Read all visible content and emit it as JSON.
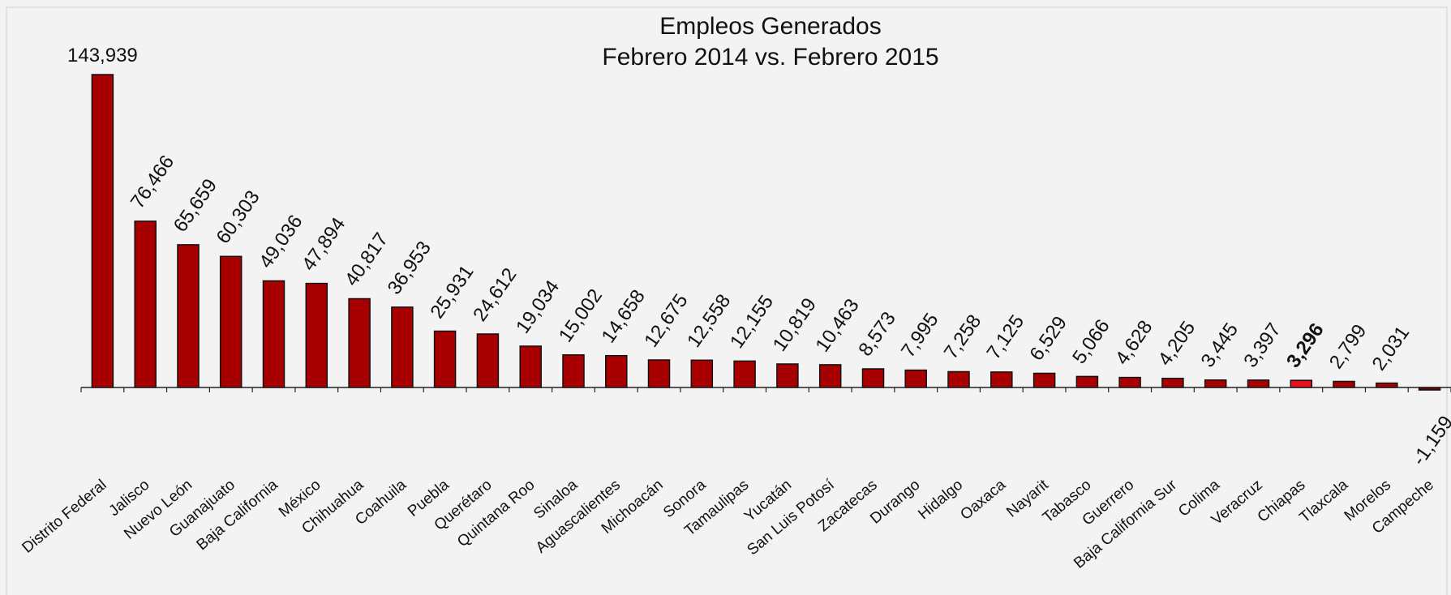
{
  "chart_data": {
    "type": "bar",
    "title": "Empleos Generados",
    "subtitle": "Febrero 2014 vs. Febrero 2015",
    "xlabel": "",
    "ylabel": "",
    "grid": false,
    "legend": "none",
    "categories": [
      "Distrito Federal",
      "Jalisco",
      "Nuevo León",
      "Guanajuato",
      "Baja California",
      "México",
      "Chihuahua",
      "Coahuila",
      "Puebla",
      "Querétaro",
      "Quintana Roo",
      "Sinaloa",
      "Aguascalientes",
      "Michoacán",
      "Sonora",
      "Tamaulipas",
      "Yucatán",
      "San Luis Potosí",
      "Zacatecas",
      "Durango",
      "Hidalgo",
      "Oaxaca",
      "Nayarit",
      "Tabasco",
      "Guerrero",
      "Baja California Sur",
      "Colima",
      "Veracruz",
      "Chiapas",
      "Tlaxcala",
      "Morelos",
      "Campeche"
    ],
    "values": [
      143939,
      76466,
      65659,
      60303,
      49036,
      47894,
      40817,
      36953,
      25931,
      24612,
      19034,
      15002,
      14658,
      12675,
      12558,
      12155,
      10819,
      10463,
      8573,
      7995,
      7258,
      7125,
      6529,
      5066,
      4628,
      4205,
      3445,
      3397,
      3296,
      2799,
      2031,
      -1159
    ],
    "value_labels": [
      "143,939",
      "76,466",
      "65,659",
      "60,303",
      "49,036",
      "47,894",
      "40,817",
      "36,953",
      "25,931",
      "24,612",
      "19,034",
      "15,002",
      "14,658",
      "12,675",
      "12,558",
      "12,155",
      "10,819",
      "10,463",
      "8,573",
      "7,995",
      "7,258",
      "7,125",
      "6,529",
      "5,066",
      "4,628",
      "4,205",
      "3,445",
      "3,397",
      "3,296",
      "2,799",
      "2,031",
      "-1,159"
    ],
    "highlight_category": "Chiapas",
    "colors": {
      "bar": "#a80000",
      "highlight": "#e8101c",
      "negative": "#7a0000",
      "stroke": "#111111",
      "background": "#f3f3f3"
    }
  }
}
